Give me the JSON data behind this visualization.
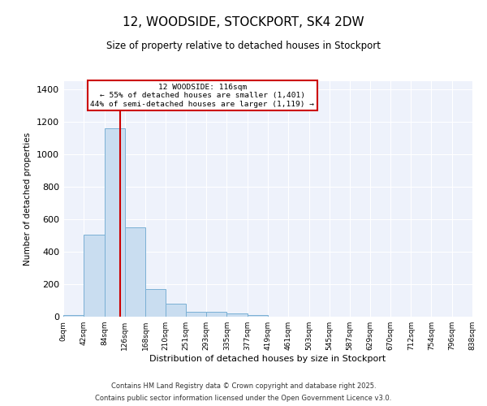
{
  "title": "12, WOODSIDE, STOCKPORT, SK4 2DW",
  "subtitle": "Size of property relative to detached houses in Stockport",
  "xlabel": "Distribution of detached houses by size in Stockport",
  "ylabel": "Number of detached properties",
  "bar_color": "#c9ddf0",
  "bar_edge_color": "#7ab0d4",
  "background_color": "#eef2fb",
  "annotation_box_color": "#cc0000",
  "vline_color": "#cc0000",
  "vline_x": 116,
  "annotation_title": "12 WOODSIDE: 116sqm",
  "annotation_line1": "← 55% of detached houses are smaller (1,401)",
  "annotation_line2": "44% of semi-detached houses are larger (1,119) →",
  "bin_edges": [
    0,
    42,
    84,
    126,
    168,
    210,
    251,
    293,
    335,
    377,
    419,
    461,
    503,
    545,
    587,
    629,
    670,
    712,
    754,
    796,
    838
  ],
  "bin_labels": [
    "0sqm",
    "42sqm",
    "84sqm",
    "126sqm",
    "168sqm",
    "210sqm",
    "251sqm",
    "293sqm",
    "335sqm",
    "377sqm",
    "419sqm",
    "461sqm",
    "503sqm",
    "545sqm",
    "587sqm",
    "629sqm",
    "670sqm",
    "712sqm",
    "754sqm",
    "796sqm",
    "838sqm"
  ],
  "bar_heights": [
    10,
    505,
    1160,
    548,
    172,
    80,
    28,
    28,
    20,
    10,
    0,
    0,
    0,
    0,
    0,
    0,
    0,
    0,
    0,
    0
  ],
  "ylim": [
    0,
    1450
  ],
  "yticks": [
    0,
    200,
    400,
    600,
    800,
    1000,
    1200,
    1400
  ],
  "footer1": "Contains HM Land Registry data © Crown copyright and database right 2025.",
  "footer2": "Contains public sector information licensed under the Open Government Licence v3.0."
}
